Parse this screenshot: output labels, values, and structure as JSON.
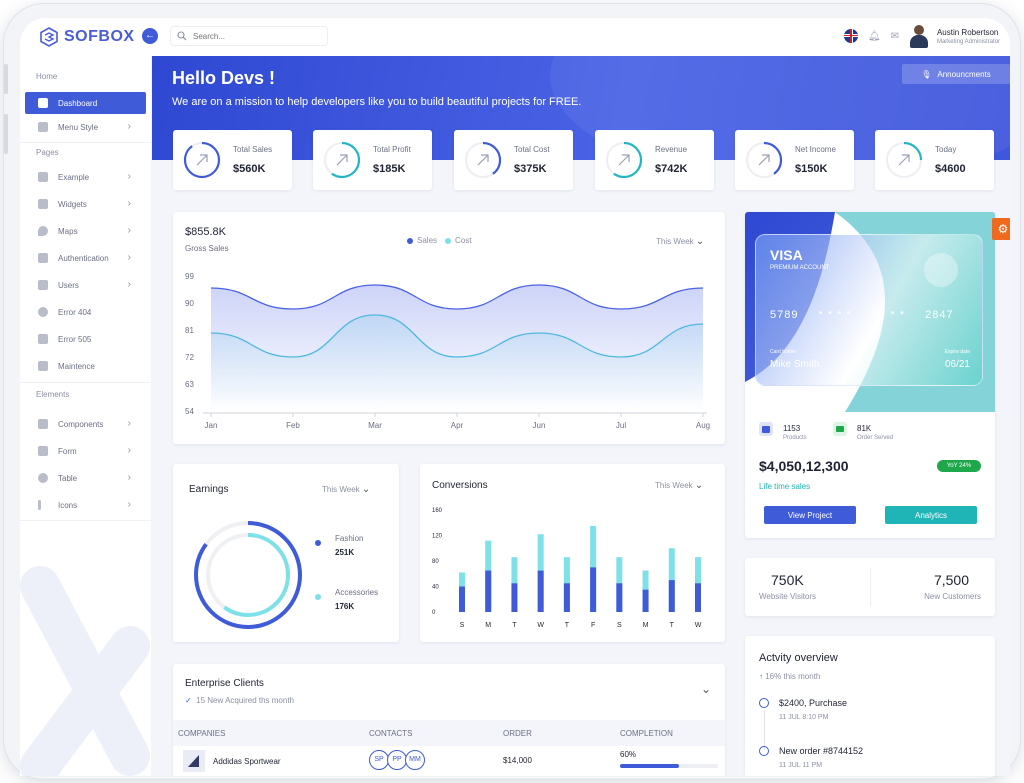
{
  "brand": {
    "name": "SOFBOX"
  },
  "search": {
    "placeholder": "Search..."
  },
  "user": {
    "name": "Austin Robertson",
    "role": "Marketing Administrator"
  },
  "sidebar": {
    "sections": [
      "Home",
      "Pages",
      "Elements"
    ],
    "home_items": [
      {
        "label": "Dashboard",
        "icon": "dashboard-icon",
        "active": true
      },
      {
        "label": "Menu Style",
        "icon": "menu-style-icon"
      }
    ],
    "page_items": [
      {
        "label": "Example",
        "icon": "example-icon"
      },
      {
        "label": "Widgets",
        "icon": "widgets-icon"
      },
      {
        "label": "Maps",
        "icon": "map-pin-icon"
      },
      {
        "label": "Authentication",
        "icon": "shield-icon"
      },
      {
        "label": "Users",
        "icon": "users-icon"
      },
      {
        "label": "Error 404",
        "icon": "error-icon"
      },
      {
        "label": "Error 505",
        "icon": "warning-icon"
      },
      {
        "label": "Maintence",
        "icon": "maintenance-icon"
      }
    ],
    "element_items": [
      {
        "label": "Components",
        "icon": "components-icon"
      },
      {
        "label": "Form",
        "icon": "form-icon"
      },
      {
        "label": "Table",
        "icon": "table-icon"
      },
      {
        "label": "Icons",
        "icon": "info-icon"
      }
    ]
  },
  "hero": {
    "title": "Hello Devs !",
    "subtitle": "We are on a mission to help developers like you to build beautiful projects for FREE.",
    "announce_label": "Announcments"
  },
  "stats": [
    {
      "label": "Total Sales",
      "value": "$560K",
      "color": "#3f5bd8",
      "fraction": 0.9
    },
    {
      "label": "Total Profit",
      "value": "$185K",
      "color": "#23b5c4",
      "fraction": 0.6
    },
    {
      "label": "Total Cost",
      "value": "$375K",
      "color": "#3f5bd8",
      "fraction": 0.4
    },
    {
      "label": "Revenue",
      "value": "$742K",
      "color": "#23b5c4",
      "fraction": 0.6
    },
    {
      "label": "Net Income",
      "value": "$150K",
      "color": "#3f5bd8",
      "fraction": 0.4
    },
    {
      "label": "Today",
      "value": "$4600",
      "color": "#23b5c4",
      "fraction": 0.25
    }
  ],
  "sales_card": {
    "value": "$855.8K",
    "subtitle": "Gross Sales",
    "week_label": "This Week"
  },
  "chart_data": [
    {
      "type": "area",
      "categories": [
        "Jan",
        "Feb",
        "Mar",
        "Apr",
        "Jun",
        "Jul",
        "Aug"
      ],
      "series": [
        {
          "name": "Sales",
          "values": [
            95,
            88,
            96,
            88,
            96,
            88,
            95
          ],
          "color": "#4a63e5"
        },
        {
          "name": "Cost",
          "values": [
            80,
            72,
            86,
            72,
            80,
            72,
            83
          ],
          "color": "#4fb8e0"
        }
      ],
      "yticks": [
        "99",
        "90",
        "81",
        "72",
        "63",
        "54"
      ],
      "ylim": [
        54,
        99
      ]
    },
    {
      "type": "bar",
      "title": "Conversions",
      "categories": [
        "S",
        "M",
        "T",
        "W",
        "T",
        "F",
        "S",
        "M",
        "T",
        "W"
      ],
      "series": [
        {
          "values": [
            40,
            65,
            45,
            65,
            45,
            70,
            45,
            35,
            50,
            45
          ],
          "color": "#3f5bd8"
        },
        {
          "values": [
            62,
            112,
            86,
            122,
            86,
            135,
            86,
            65,
            100,
            86
          ],
          "color": "#7ee0e8"
        }
      ],
      "yticks": [
        "160",
        "120",
        "80",
        "40",
        "0"
      ],
      "ylim": [
        0,
        160
      ]
    }
  ],
  "earnings": {
    "title": "Earnings",
    "week_label": "This Week",
    "items": [
      {
        "label": "Fashion",
        "value": "251K",
        "color": "#3f5bd8",
        "fraction": 0.85
      },
      {
        "label": "Accessories",
        "value": "176K",
        "color": "#7ee0e8",
        "fraction": 0.6
      }
    ]
  },
  "conversions": {
    "title": "Conversions",
    "week_label": "This Week"
  },
  "visa": {
    "brand": "VISA",
    "account": "PREMIUM ACCOUNT",
    "num1": "5789",
    "num2": "* * * *",
    "num3": "* * * *",
    "num4": "2847",
    "holder_label": "Card holder",
    "holder": "Mike Smith",
    "expire_label": "Expire date",
    "expire": "06/21"
  },
  "summary": {
    "products_value": "1153",
    "products_label": "Products",
    "orders_value": "81K",
    "orders_label": "Order Served",
    "total": "$4,050,12,300",
    "total_label": "Life time sales",
    "yoy": "YoY 24%",
    "view_project": "View Project",
    "analytics": "Analytics"
  },
  "visitors": {
    "value": "750K",
    "label": "Website Visitors",
    "customers_value": "7,500",
    "customers_label": "New Customers"
  },
  "enterprise": {
    "title": "Enterprise Clients",
    "subtitle": "15 New Acquired ths month",
    "headers": [
      "COMPANIES",
      "CONTACTS",
      "ORDER",
      "COMPLETION"
    ],
    "rows": [
      {
        "company": "Addidas Sportwear",
        "contacts": [
          "SP",
          "PP",
          "MM"
        ],
        "order": "$14,000",
        "completion": "60%",
        "fraction": 0.6
      }
    ]
  },
  "activity": {
    "title": "Actvity overview",
    "subtitle": "16% this month",
    "items": [
      {
        "text": "$2400, Purchase",
        "date": "11 JUL 8:10 PM"
      },
      {
        "text": "New order #8744152",
        "date": "11 JUL 11 PM"
      }
    ]
  },
  "colors": {
    "primary": "#3f5bd8",
    "teal": "#1fb5b6",
    "accent": "#ef6a1f",
    "success": "#1ea84b"
  }
}
